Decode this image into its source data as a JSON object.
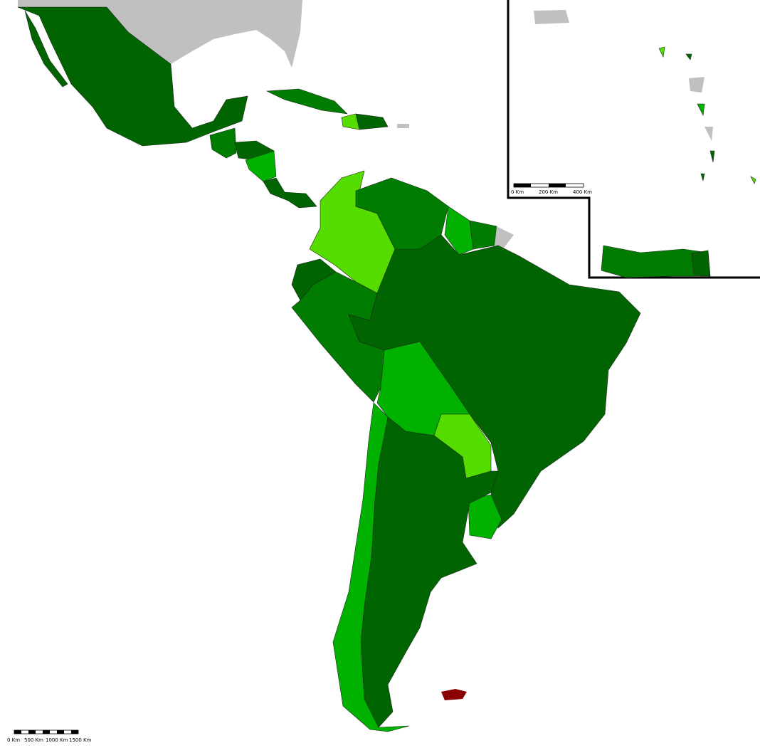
{
  "scale_bar": {
    "labels": [
      "0 Km",
      "500 Km",
      "1000 Km",
      "1500 Km"
    ]
  },
  "inset_scale_bar": {
    "labels": [
      "0 Km",
      "200 Km",
      "400 Km"
    ]
  }
}
